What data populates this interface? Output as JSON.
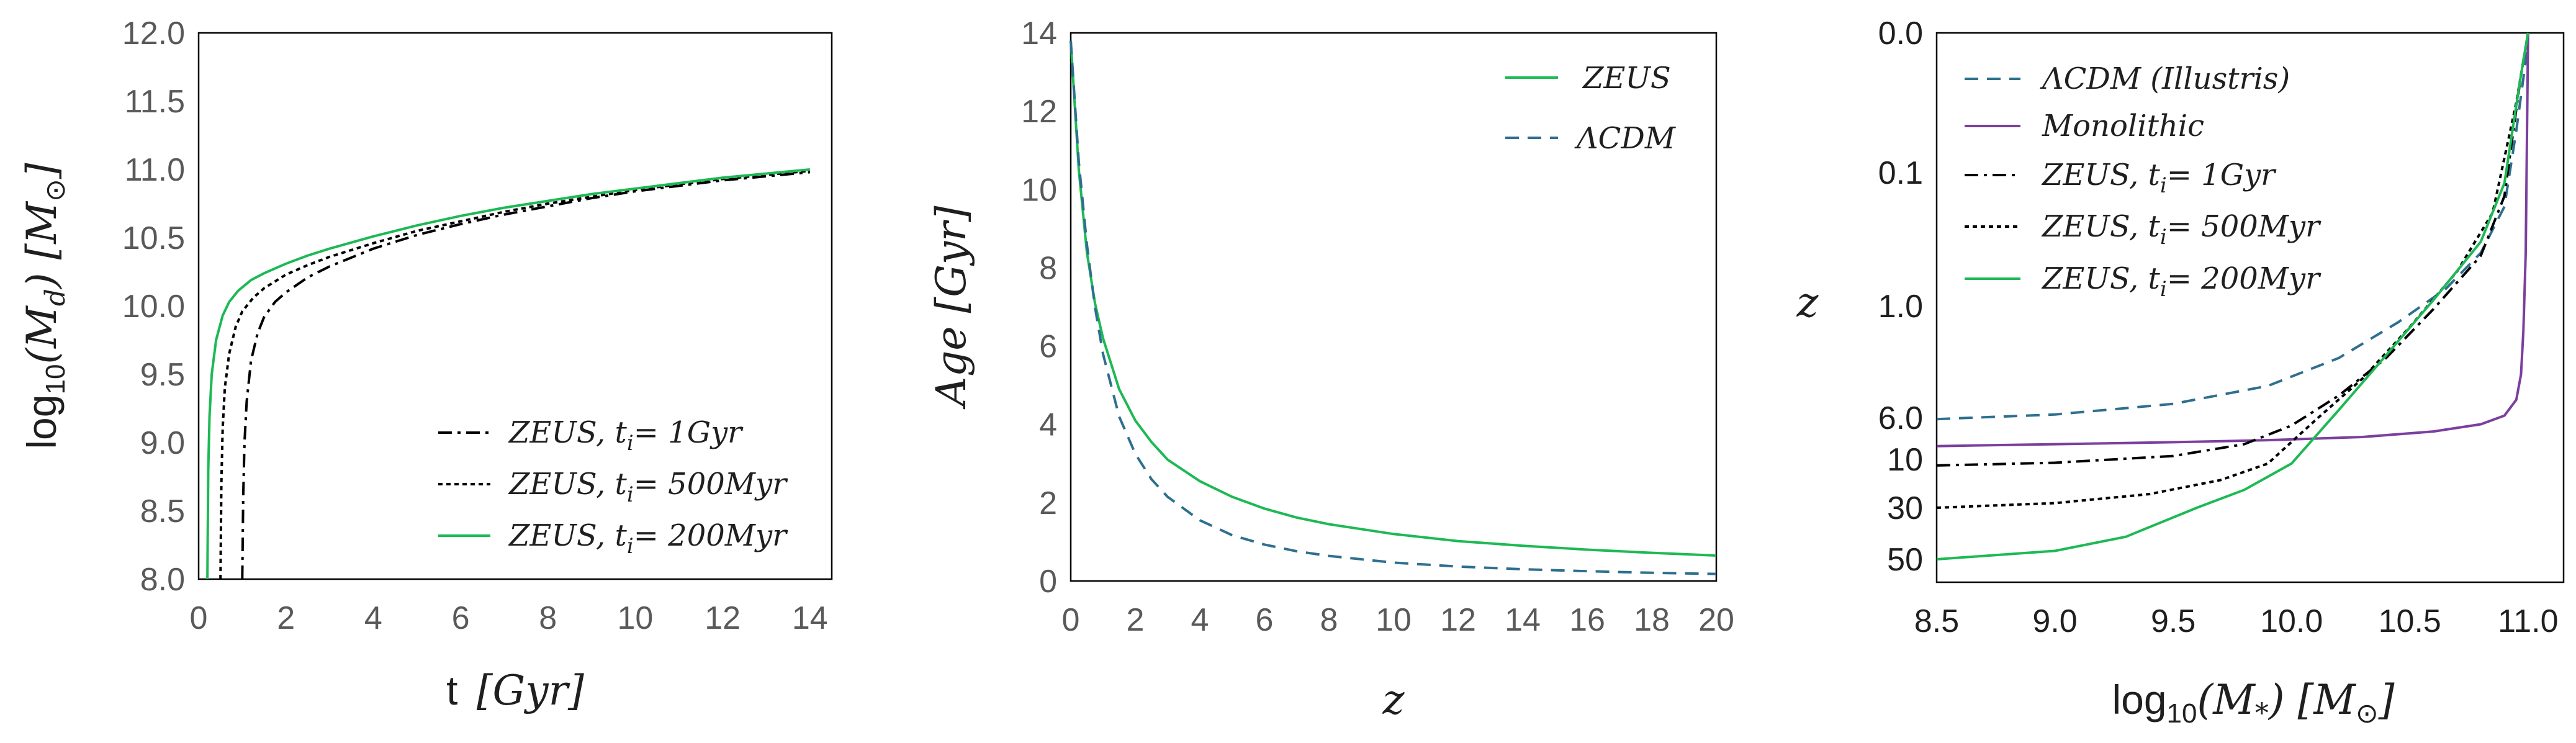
{
  "colors": {
    "zeus_200": "#1db954",
    "lcdm": "#2e6f8e",
    "monolithic": "#7b3f9e",
    "black": "#000000",
    "tick": "#595959"
  },
  "chart_data": [
    {
      "type": "line",
      "xlabel_prefix": "t",
      "xlabel_unit": "[Gyr]",
      "ylabel_func": "log",
      "ylabel_sub": "10",
      "ylabel_var": "(M",
      "ylabel_varsub": "d",
      "ylabel_unit": ")  [M",
      "ylabel_sun": "⊙",
      "xlim": [
        0,
        14.5
      ],
      "ylim": [
        8.0,
        12.0
      ],
      "x_ticks": [
        "0",
        "2",
        "4",
        "6",
        "8",
        "10",
        "12",
        "14"
      ],
      "y_ticks": [
        "8.0",
        "8.5",
        "9.0",
        "9.5",
        "10.0",
        "10.5",
        "11.0",
        "11.5",
        "12.0"
      ],
      "legend_position": "bottom-right",
      "series": [
        {
          "name": "ZEUS,  t",
          "sub": "i",
          "name2": "= 1Gyr",
          "style": "dashdot",
          "color": "#000000",
          "x": [
            1.0,
            1.02,
            1.05,
            1.1,
            1.2,
            1.35,
            1.5,
            1.75,
            2.0,
            2.5,
            3,
            4,
            5,
            6,
            7,
            8,
            9,
            10,
            11,
            12,
            13,
            14
          ],
          "y": [
            8.0,
            8.6,
            9.0,
            9.3,
            9.6,
            9.8,
            9.92,
            10.03,
            10.1,
            10.21,
            10.29,
            10.42,
            10.52,
            10.6,
            10.67,
            10.73,
            10.79,
            10.84,
            10.88,
            10.92,
            10.95,
            10.98
          ]
        },
        {
          "name": "ZEUS,  t",
          "sub": "i",
          "name2": "= 500Myr",
          "style": "dotted",
          "color": "#000000",
          "x": [
            0.5,
            0.52,
            0.55,
            0.6,
            0.7,
            0.85,
            1.0,
            1.25,
            1.5,
            2.0,
            2.5,
            3,
            4,
            5,
            6,
            7,
            8,
            9,
            10,
            11,
            12,
            13,
            14
          ],
          "y": [
            8.0,
            8.7,
            9.1,
            9.4,
            9.65,
            9.85,
            9.96,
            10.06,
            10.13,
            10.23,
            10.3,
            10.36,
            10.46,
            10.55,
            10.62,
            10.69,
            10.75,
            10.8,
            10.85,
            10.89,
            10.93,
            10.96,
            10.99
          ]
        },
        {
          "name": "ZEUS,  t",
          "sub": "i",
          "name2": "= 200Myr",
          "style": "solid",
          "color": "#1db954",
          "x": [
            0.2,
            0.22,
            0.25,
            0.3,
            0.4,
            0.55,
            0.7,
            0.9,
            1.2,
            1.5,
            2.0,
            2.5,
            3,
            4,
            5,
            6,
            7,
            8,
            9,
            10,
            11,
            12,
            13,
            14
          ],
          "y": [
            8.0,
            8.8,
            9.2,
            9.5,
            9.75,
            9.93,
            10.03,
            10.11,
            10.19,
            10.24,
            10.31,
            10.37,
            10.42,
            10.51,
            10.59,
            10.66,
            10.72,
            10.77,
            10.82,
            10.86,
            10.9,
            10.94,
            10.97,
            11.0
          ]
        }
      ]
    },
    {
      "type": "line",
      "xlabel": "z",
      "ylabel_var": "Age ",
      "ylabel_unit": "[Gyr]",
      "xlim": [
        0,
        20
      ],
      "ylim": [
        0,
        14
      ],
      "x_ticks": [
        "0",
        "2",
        "4",
        "6",
        "8",
        "10",
        "12",
        "14",
        "16",
        "18",
        "20"
      ],
      "y_ticks": [
        "0",
        "2",
        "4",
        "6",
        "8",
        "10",
        "12",
        "14"
      ],
      "legend_position": "top-right",
      "series": [
        {
          "name": "ZEUS",
          "style": "solid",
          "color": "#1db954",
          "x": [
            0,
            0.25,
            0.5,
            0.75,
            1.0,
            1.5,
            2,
            2.5,
            3,
            4,
            5,
            6,
            7,
            8,
            10,
            12,
            14,
            16,
            18,
            20
          ],
          "y": [
            13.8,
            10.5,
            8.4,
            7.1,
            6.2,
            4.9,
            4.1,
            3.55,
            3.1,
            2.55,
            2.15,
            1.85,
            1.62,
            1.45,
            1.2,
            1.02,
            0.9,
            0.8,
            0.72,
            0.65
          ]
        },
        {
          "name": "ΛCDM",
          "style": "dashed",
          "color": "#2e6f8e",
          "x": [
            0,
            0.25,
            0.5,
            0.75,
            1.0,
            1.5,
            2,
            2.5,
            3,
            4,
            5,
            6,
            7,
            8,
            10,
            12,
            14,
            16,
            18,
            20
          ],
          "y": [
            13.8,
            10.7,
            8.6,
            7.0,
            5.8,
            4.2,
            3.25,
            2.6,
            2.15,
            1.55,
            1.17,
            0.93,
            0.76,
            0.64,
            0.47,
            0.37,
            0.3,
            0.25,
            0.21,
            0.18
          ]
        }
      ]
    },
    {
      "type": "line",
      "xlabel_func": "log",
      "xlabel_sub": "10",
      "xlabel_var": "(M",
      "xlabel_varsub": "*",
      "xlabel_unit": ")  [M",
      "xlabel_sun": "⊙",
      "ylabel": "z",
      "xlim": [
        8.5,
        11.15
      ],
      "y_reversed": true,
      "x_ticks": [
        "8.5",
        "9.0",
        "9.5",
        "10.0",
        "10.5",
        "11.0"
      ],
      "y_ticks": [
        "0.0",
        "0.1",
        "1.0",
        "6.0",
        "10",
        "30",
        "50"
      ],
      "legend_position": "top-left",
      "series": [
        {
          "name": "ΛCDM (Illustris)",
          "style": "dashed",
          "color": "#2e6f8e",
          "x": [
            8.5,
            9.0,
            9.5,
            9.9,
            10.2,
            10.45,
            10.65,
            10.8,
            10.9,
            10.95,
            10.99,
            11.0
          ],
          "y": [
            6.1,
            5.7,
            4.8,
            3.6,
            2.3,
            1.3,
            0.75,
            0.4,
            0.18,
            0.07,
            0.02,
            0.0
          ]
        },
        {
          "name": "Monolithic",
          "style": "solid",
          "color": "#7b3f9e",
          "x": [
            8.5,
            9.0,
            9.5,
            9.9,
            10.3,
            10.6,
            10.8,
            10.9,
            10.95,
            10.97,
            10.98,
            10.99,
            11.0
          ],
          "y": [
            8.5,
            8.3,
            8.1,
            7.9,
            7.6,
            7.1,
            6.5,
            5.8,
            4.5,
            3.0,
            1.5,
            0.4,
            0.0
          ]
        },
        {
          "name": "ZEUS,  t",
          "sub": "i",
          "name2": "= 1Gyr",
          "style": "dashdot",
          "color": "#000000",
          "x": [
            8.5,
            9.0,
            9.5,
            9.8,
            10.0,
            10.2,
            10.4,
            10.6,
            10.8,
            10.9,
            10.97,
            11.0
          ],
          "y": [
            11.5,
            10.8,
            9.6,
            8.3,
            6.6,
            4.2,
            2.3,
            1.05,
            0.42,
            0.15,
            0.03,
            0.0
          ]
        },
        {
          "name": "ZEUS,  t",
          "sub": "i",
          "name2": "= 500Myr",
          "style": "dotted",
          "color": "#000000",
          "x": [
            8.5,
            9.0,
            9.4,
            9.7,
            9.9,
            10.1,
            10.3,
            10.5,
            10.7,
            10.85,
            10.95,
            11.0
          ],
          "y": [
            30,
            27,
            22,
            16,
            11,
            6.2,
            3.2,
            1.4,
            0.55,
            0.2,
            0.05,
            0.0
          ]
        },
        {
          "name": "ZEUS,  t",
          "sub": "i",
          "name2": "= 200Myr",
          "style": "solid",
          "color": "#1db954",
          "x": [
            8.5,
            9.0,
            9.3,
            9.6,
            9.8,
            10.0,
            10.2,
            10.4,
            10.6,
            10.8,
            10.9,
            10.97,
            11.0
          ],
          "y": [
            50,
            46,
            40,
            30,
            20,
            11,
            5.3,
            2.2,
            0.9,
            0.33,
            0.12,
            0.03,
            0.0
          ]
        }
      ]
    }
  ]
}
